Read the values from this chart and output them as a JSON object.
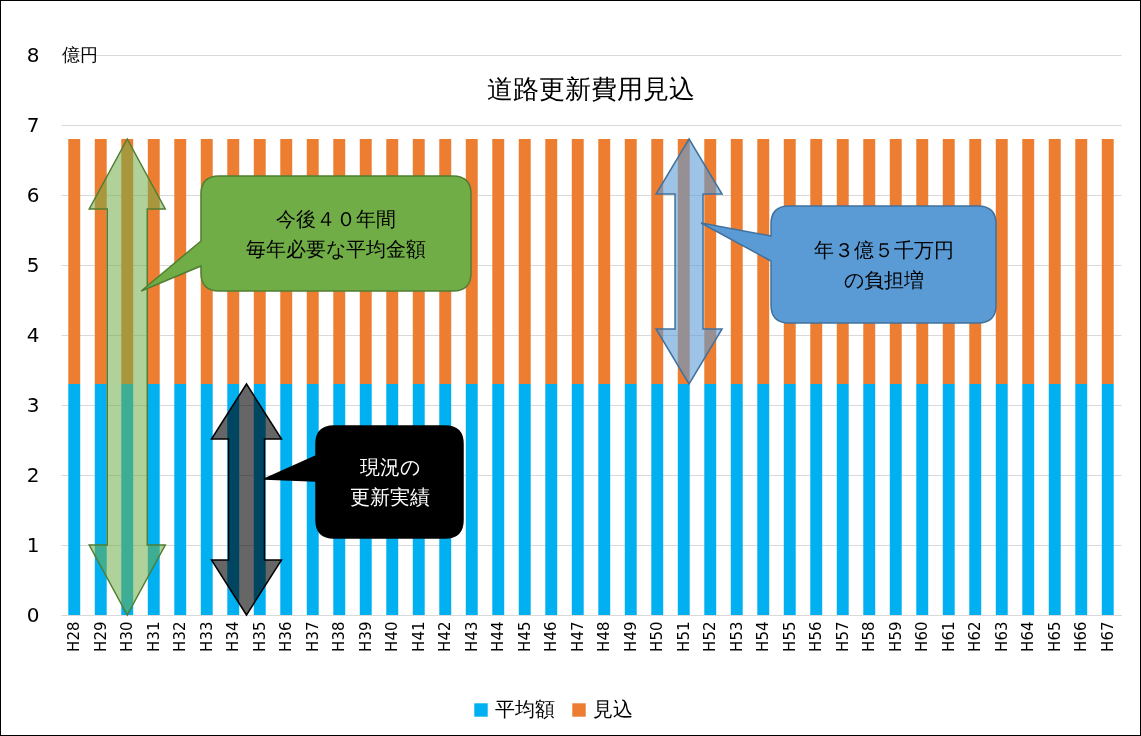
{
  "chart_data": {
    "type": "bar",
    "title": "道路更新費用見込",
    "ylabel": "億円",
    "stacked": true,
    "categories": [
      "H28",
      "H29",
      "H30",
      "H31",
      "H32",
      "H33",
      "H34",
      "H35",
      "H36",
      "H37",
      "H38",
      "H39",
      "H40",
      "H41",
      "H42",
      "H43",
      "H44",
      "H45",
      "H46",
      "H47",
      "H48",
      "H49",
      "H50",
      "H51",
      "H52",
      "H53",
      "H54",
      "H55",
      "H56",
      "H57",
      "H58",
      "H59",
      "H60",
      "H61",
      "H62",
      "H63",
      "H64",
      "H65",
      "H66",
      "H67"
    ],
    "series": [
      {
        "name": "平均額",
        "color": "#00b0f0",
        "values": [
          3.3,
          3.3,
          3.3,
          3.3,
          3.3,
          3.3,
          3.3,
          3.3,
          3.3,
          3.3,
          3.3,
          3.3,
          3.3,
          3.3,
          3.3,
          3.3,
          3.3,
          3.3,
          3.3,
          3.3,
          3.3,
          3.3,
          3.3,
          3.3,
          3.3,
          3.3,
          3.3,
          3.3,
          3.3,
          3.3,
          3.3,
          3.3,
          3.3,
          3.3,
          3.3,
          3.3,
          3.3,
          3.3,
          3.3,
          3.3
        ]
      },
      {
        "name": "見込",
        "color": "#ed7d31",
        "values": [
          3.5,
          3.5,
          3.5,
          3.5,
          3.5,
          3.5,
          3.5,
          3.5,
          3.5,
          3.5,
          3.5,
          3.5,
          3.5,
          3.5,
          3.5,
          3.5,
          3.5,
          3.5,
          3.5,
          3.5,
          3.5,
          3.5,
          3.5,
          3.5,
          3.5,
          3.5,
          3.5,
          3.5,
          3.5,
          3.5,
          3.5,
          3.5,
          3.5,
          3.5,
          3.5,
          3.5,
          3.5,
          3.5,
          3.5,
          3.5
        ]
      }
    ],
    "ylim": [
      0,
      8
    ],
    "yticks": [
      0,
      1,
      2,
      3,
      4,
      5,
      6,
      7,
      8
    ],
    "grid": "y",
    "legend": "bottom",
    "annotations": [
      "今後４０年間",
      "毎年必要な平均金額",
      "年３億５千万円",
      "の負担増",
      "現況の",
      "更新実績"
    ]
  }
}
